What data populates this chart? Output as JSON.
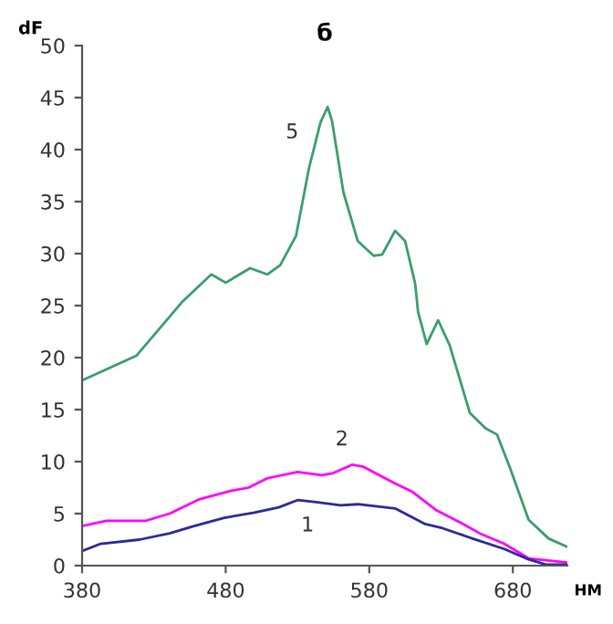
{
  "chart_data": {
    "type": "line",
    "title": "б",
    "ylabel": "dF",
    "xlabel": "НМ",
    "xlim": [
      380,
      718
    ],
    "xticks": [
      380,
      480,
      580,
      680
    ],
    "ylim": [
      0,
      50
    ],
    "yticks": [
      0,
      5,
      10,
      15,
      20,
      25,
      30,
      35,
      40,
      45,
      50
    ],
    "grid": false,
    "legend": false,
    "marker": "none",
    "line_style": "solid",
    "series": [
      {
        "name": "5",
        "color": "#3a9e6a",
        "x": [
          380,
          418,
          450,
          470,
          480,
          497,
          509,
          518,
          529,
          538,
          546,
          551,
          554,
          562,
          572,
          583,
          589,
          598,
          605,
          612,
          614,
          620,
          628,
          636,
          650,
          661,
          669,
          678,
          691,
          705,
          718
        ],
        "values": [
          17.8,
          20.2,
          25.4,
          28.0,
          27.2,
          28.6,
          28.0,
          28.9,
          31.7,
          38.2,
          42.6,
          44.1,
          42.8,
          35.9,
          31.2,
          29.8,
          29.9,
          32.2,
          31.2,
          27.1,
          24.4,
          21.3,
          23.6,
          21.2,
          14.7,
          13.2,
          12.6,
          9.4,
          4.4,
          2.6,
          1.8
        ]
      },
      {
        "name": "2",
        "color": "#ff00ff",
        "x": [
          380,
          397,
          424,
          441,
          462,
          484,
          496,
          509,
          530,
          547,
          555,
          568,
          576,
          598,
          610,
          627,
          644,
          657,
          674,
          691,
          718
        ],
        "values": [
          3.8,
          4.3,
          4.3,
          5.0,
          6.4,
          7.2,
          7.5,
          8.4,
          9.0,
          8.7,
          8.9,
          9.7,
          9.5,
          7.9,
          7.1,
          5.3,
          4.1,
          3.1,
          2.1,
          0.7,
          0.3
        ]
      },
      {
        "name": "1",
        "color": "#2a2a9a",
        "x": [
          380,
          393,
          420,
          441,
          458,
          479,
          500,
          517,
          530,
          543,
          560,
          572,
          598,
          619,
          631,
          652,
          674,
          691,
          703,
          718
        ],
        "values": [
          1.4,
          2.1,
          2.5,
          3.1,
          3.8,
          4.6,
          5.1,
          5.6,
          6.3,
          6.1,
          5.8,
          5.9,
          5.5,
          4.0,
          3.6,
          2.6,
          1.6,
          0.6,
          0.1,
          0.1
        ]
      }
    ]
  }
}
